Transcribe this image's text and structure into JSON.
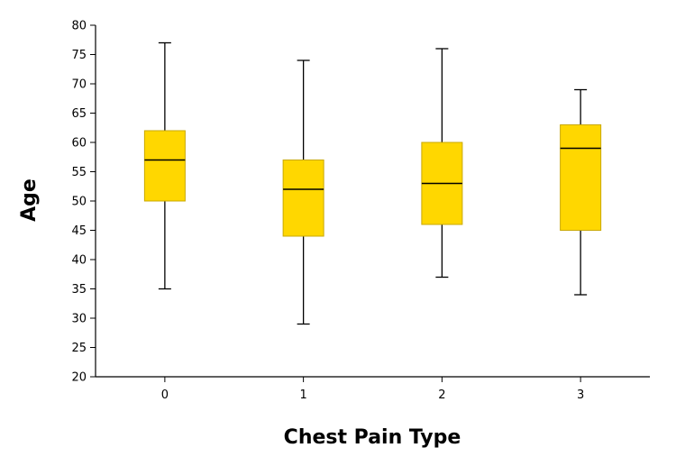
{
  "chart_data": {
    "type": "box",
    "title": "",
    "xlabel": "Chest Pain Type",
    "ylabel": "Age",
    "ylim": [
      20,
      80
    ],
    "yticks": [
      20,
      25,
      30,
      35,
      40,
      45,
      50,
      55,
      60,
      65,
      70,
      75,
      80
    ],
    "box_color": "#FFD700",
    "grid": false,
    "categories": [
      "0",
      "1",
      "2",
      "3"
    ],
    "boxes": [
      {
        "category": "0",
        "min": 35,
        "q1": 50,
        "median": 57,
        "q3": 62,
        "max": 77
      },
      {
        "category": "1",
        "min": 29,
        "q1": 44,
        "median": 52,
        "q3": 57,
        "max": 74
      },
      {
        "category": "2",
        "min": 37,
        "q1": 46,
        "median": 53,
        "q3": 60,
        "max": 76
      },
      {
        "category": "3",
        "min": 34,
        "q1": 45,
        "median": 59,
        "q3": 63,
        "max": 69
      }
    ]
  }
}
